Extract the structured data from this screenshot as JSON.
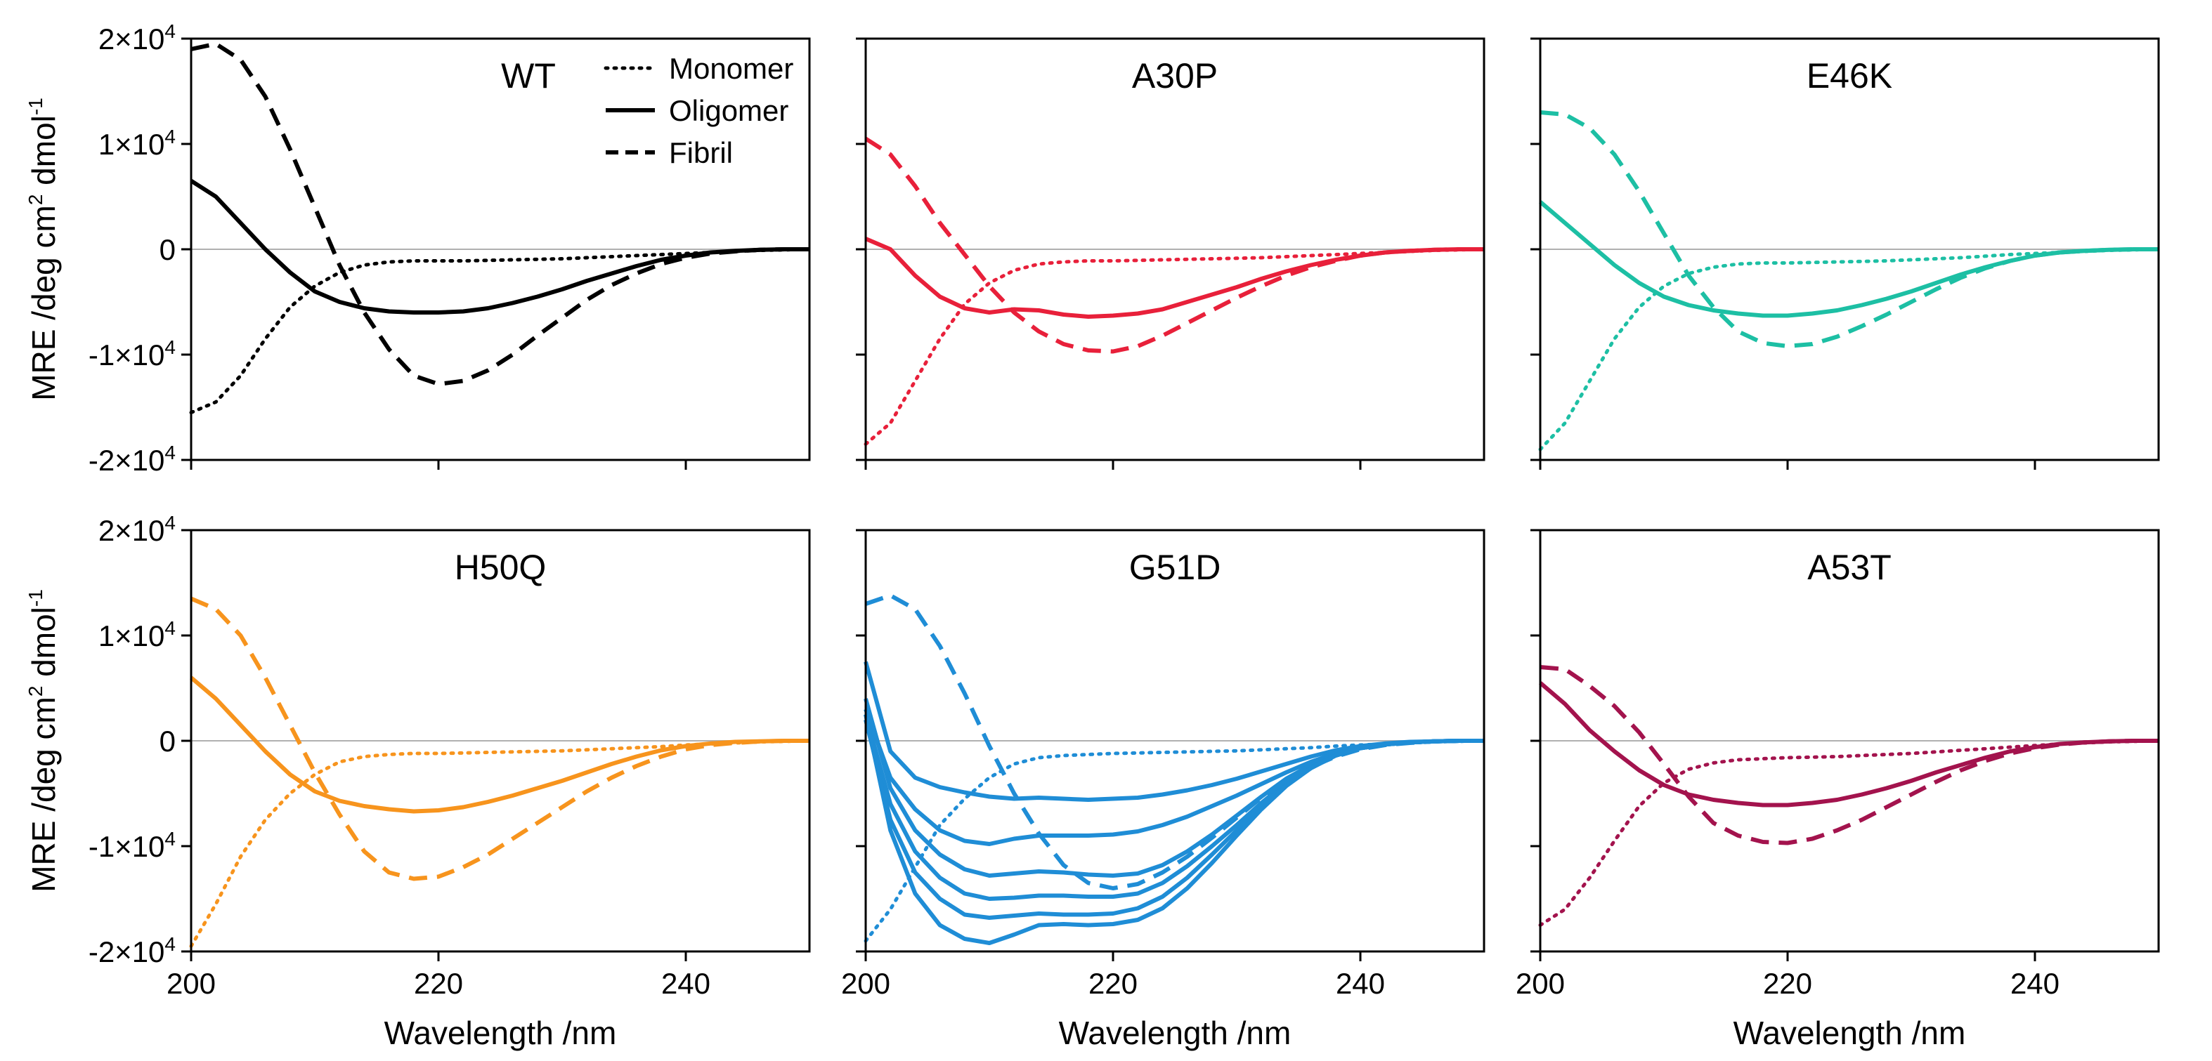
{
  "chart_data": {
    "type": "line",
    "figure": "Circular dichroism spectra of alpha-synuclein variants",
    "xlabel": "Wavelength /nm",
    "ylabel": "MRE /deg cm2 dmol-1",
    "ylabel_parts": {
      "base": "MRE /deg cm",
      "sup1": "2",
      "mid": " dmol",
      "sup2": "-1"
    },
    "xlim": [
      200,
      250
    ],
    "ylim": [
      -20000,
      20000
    ],
    "x_ticks": [
      200,
      220,
      240
    ],
    "x_tick_labels": [
      "200",
      "220",
      "240"
    ],
    "y_ticks": [
      20000,
      10000,
      0,
      -10000,
      -20000
    ],
    "y_tick_labels": [
      {
        "mant": "2×10",
        "exp": "4"
      },
      {
        "mant": "1×10",
        "exp": "4"
      },
      {
        "mant": "0",
        "exp": ""
      },
      {
        "mant": "-1×10",
        "exp": "4"
      },
      {
        "mant": "-2×10",
        "exp": "4"
      }
    ],
    "legend": {
      "position": "top-left panel, top-right",
      "entries": [
        {
          "label": "Monomer",
          "style": "dotted"
        },
        {
          "label": "Oligomer",
          "style": "solid"
        },
        {
          "label": "Fibril",
          "style": "dashed"
        }
      ]
    },
    "x": [
      200,
      202,
      204,
      206,
      208,
      210,
      212,
      214,
      216,
      218,
      220,
      222,
      224,
      226,
      228,
      230,
      232,
      234,
      236,
      238,
      240,
      242,
      244,
      246,
      248,
      250
    ],
    "panels": [
      {
        "title": "WT",
        "color": "#000000",
        "series": [
          {
            "name": "Monomer",
            "style": "dotted",
            "values": [
              -15500,
              -14500,
              -12000,
              -8500,
              -5500,
              -3500,
              -2200,
              -1500,
              -1200,
              -1100,
              -1100,
              -1100,
              -1050,
              -1000,
              -950,
              -900,
              -800,
              -700,
              -600,
              -500,
              -400,
              -300,
              -200,
              -100,
              -50,
              0
            ]
          },
          {
            "name": "Oligomer",
            "style": "solid",
            "values": [
              6500,
              5000,
              2500,
              0,
              -2200,
              -4000,
              -5000,
              -5600,
              -5900,
              -6000,
              -6000,
              -5900,
              -5600,
              -5100,
              -4500,
              -3800,
              -3000,
              -2300,
              -1600,
              -1000,
              -600,
              -300,
              -150,
              -50,
              0,
              0
            ]
          },
          {
            "name": "Fibril",
            "style": "dashed",
            "values": [
              19000,
              19500,
              18000,
              14500,
              9500,
              4000,
              -1500,
              -6000,
              -9500,
              -12000,
              -12800,
              -12500,
              -11500,
              -10000,
              -8200,
              -6500,
              -4800,
              -3400,
              -2300,
              -1400,
              -800,
              -400,
              -200,
              -50,
              0,
              0
            ]
          }
        ]
      },
      {
        "title": "A30P",
        "color": "#e8203a",
        "series": [
          {
            "name": "Monomer",
            "style": "dotted",
            "values": [
              -18500,
              -16500,
              -12500,
              -8500,
              -5200,
              -3200,
              -2000,
              -1400,
              -1200,
              -1100,
              -1100,
              -1050,
              -1000,
              -950,
              -900,
              -850,
              -800,
              -700,
              -600,
              -500,
              -400,
              -300,
              -200,
              -100,
              -50,
              0
            ]
          },
          {
            "name": "Oligomer",
            "style": "solid",
            "values": [
              1000,
              0,
              -2500,
              -4500,
              -5600,
              -6000,
              -5700,
              -5800,
              -6200,
              -6400,
              -6300,
              -6100,
              -5700,
              -5000,
              -4300,
              -3600,
              -2800,
              -2100,
              -1500,
              -1000,
              -600,
              -300,
              -150,
              -50,
              0,
              0
            ]
          },
          {
            "name": "Fibril",
            "style": "dashed",
            "values": [
              10500,
              9000,
              6000,
              2500,
              -500,
              -3500,
              -6000,
              -7800,
              -9000,
              -9600,
              -9700,
              -9200,
              -8200,
              -7000,
              -5800,
              -4600,
              -3500,
              -2500,
              -1700,
              -1100,
              -600,
              -300,
              -150,
              -50,
              0,
              0
            ]
          }
        ]
      },
      {
        "title": "E46K",
        "color": "#1dbfa4",
        "series": [
          {
            "name": "Monomer",
            "style": "dotted",
            "values": [
              -19000,
              -16500,
              -12500,
              -8500,
              -5500,
              -3500,
              -2300,
              -1700,
              -1400,
              -1300,
              -1300,
              -1250,
              -1200,
              -1150,
              -1100,
              -1000,
              -900,
              -800,
              -650,
              -500,
              -400,
              -300,
              -200,
              -100,
              -50,
              0
            ]
          },
          {
            "name": "Oligomer",
            "style": "solid",
            "values": [
              4500,
              2500,
              500,
              -1500,
              -3200,
              -4500,
              -5300,
              -5800,
              -6100,
              -6300,
              -6300,
              -6100,
              -5800,
              -5300,
              -4700,
              -4000,
              -3200,
              -2400,
              -1700,
              -1100,
              -600,
              -300,
              -150,
              -50,
              0,
              0
            ]
          },
          {
            "name": "Fibril",
            "style": "dashed",
            "values": [
              13000,
              12800,
              11500,
              9000,
              5500,
              1500,
              -2500,
              -5500,
              -7800,
              -8900,
              -9200,
              -9000,
              -8300,
              -7300,
              -6200,
              -5000,
              -3800,
              -2700,
              -1800,
              -1100,
              -600,
              -300,
              -150,
              -50,
              0,
              0
            ]
          }
        ]
      },
      {
        "title": "H50Q",
        "color": "#f7941d",
        "series": [
          {
            "name": "Monomer",
            "style": "dotted",
            "values": [
              -19500,
              -15500,
              -11000,
              -7500,
              -5000,
              -3200,
              -2000,
              -1500,
              -1300,
              -1200,
              -1200,
              -1150,
              -1100,
              -1050,
              -1000,
              -950,
              -850,
              -750,
              -650,
              -550,
              -400,
              -300,
              -200,
              -100,
              -50,
              0
            ]
          },
          {
            "name": "Oligomer",
            "style": "solid",
            "values": [
              6000,
              4000,
              1500,
              -1000,
              -3200,
              -4800,
              -5700,
              -6200,
              -6500,
              -6700,
              -6600,
              -6300,
              -5800,
              -5200,
              -4500,
              -3800,
              -3000,
              -2200,
              -1500,
              -900,
              -500,
              -250,
              -100,
              -50,
              0,
              0
            ]
          },
          {
            "name": "Fibril",
            "style": "dashed",
            "values": [
              13500,
              12500,
              10000,
              6000,
              1500,
              -3000,
              -7000,
              -10500,
              -12500,
              -13100,
              -12900,
              -12000,
              -10800,
              -9300,
              -7800,
              -6300,
              -4800,
              -3500,
              -2400,
              -1500,
              -800,
              -400,
              -200,
              -50,
              0,
              0
            ]
          }
        ]
      },
      {
        "title": "G51D",
        "color": "#1f8dd6",
        "series": [
          {
            "name": "Monomer",
            "style": "dotted",
            "values": [
              -19000,
              -16000,
              -12000,
              -8000,
              -5500,
              -3500,
              -2200,
              -1600,
              -1400,
              -1300,
              -1200,
              -1150,
              -1100,
              -1050,
              -1000,
              -950,
              -850,
              -750,
              -650,
              -500,
              -400,
              -300,
              -200,
              -100,
              -50,
              0
            ]
          },
          {
            "name": "Oligomer 1",
            "style": "solid",
            "values": [
              7500,
              -1000,
              -3500,
              -4400,
              -4900,
              -5300,
              -5500,
              -5400,
              -5500,
              -5600,
              -5500,
              -5400,
              -5100,
              -4700,
              -4200,
              -3600,
              -2900,
              -2200,
              -1500,
              -900,
              -500,
              -250,
              -100,
              -50,
              0,
              0
            ]
          },
          {
            "name": "Oligomer 2",
            "style": "solid",
            "values": [
              3000,
              -3500,
              -6500,
              -8500,
              -9500,
              -9800,
              -9300,
              -9000,
              -9000,
              -9000,
              -8900,
              -8600,
              -8000,
              -7200,
              -6200,
              -5200,
              -4100,
              -3000,
              -2000,
              -1200,
              -600,
              -300,
              -150,
              -50,
              0,
              0
            ]
          },
          {
            "name": "Oligomer 3",
            "style": "solid",
            "values": [
              4000,
              -4500,
              -8500,
              -10800,
              -12200,
              -12800,
              -12600,
              -12400,
              -12500,
              -12700,
              -12800,
              -12600,
              -11800,
              -10500,
              -8900,
              -7100,
              -5300,
              -3600,
              -2300,
              -1300,
              -700,
              -350,
              -150,
              -50,
              0,
              0
            ]
          },
          {
            "name": "Oligomer 4",
            "style": "solid",
            "values": [
              2500,
              -6000,
              -10500,
              -13000,
              -14500,
              -15000,
              -14900,
              -14700,
              -14700,
              -14800,
              -14800,
              -14500,
              -13500,
              -11900,
              -10000,
              -8000,
              -5900,
              -4000,
              -2500,
              -1400,
              -700,
              -350,
              -150,
              -50,
              0,
              0
            ]
          },
          {
            "name": "Oligomer 5",
            "style": "solid",
            "values": [
              2000,
              -7500,
              -12500,
              -15000,
              -16500,
              -16800,
              -16600,
              -16400,
              -16500,
              -16500,
              -16400,
              -15900,
              -14800,
              -13000,
              -10800,
              -8500,
              -6200,
              -4200,
              -2600,
              -1400,
              -700,
              -350,
              -150,
              -50,
              0,
              0
            ]
          },
          {
            "name": "Oligomer 6",
            "style": "solid",
            "values": [
              2500,
              -8500,
              -14500,
              -17500,
              -18800,
              -19200,
              -18400,
              -17500,
              -17400,
              -17500,
              -17400,
              -17000,
              -15900,
              -14000,
              -11600,
              -9000,
              -6500,
              -4300,
              -2600,
              -1400,
              -700,
              -350,
              -150,
              -50,
              0,
              0
            ]
          },
          {
            "name": "Fibril",
            "style": "dashed",
            "values": [
              13000,
              13800,
              12500,
              9000,
              4500,
              -500,
              -5000,
              -8800,
              -11800,
              -13500,
              -14000,
              -13600,
              -12500,
              -11000,
              -9200,
              -7300,
              -5400,
              -3800,
              -2500,
              -1500,
              -800,
              -400,
              -200,
              -50,
              0,
              0
            ]
          }
        ]
      },
      {
        "title": "A53T",
        "color": "#a3134d",
        "series": [
          {
            "name": "Monomer",
            "style": "dotted",
            "values": [
              -17500,
              -16000,
              -13000,
              -9500,
              -6200,
              -4000,
              -2700,
              -2100,
              -1800,
              -1700,
              -1600,
              -1550,
              -1500,
              -1400,
              -1300,
              -1200,
              -1050,
              -900,
              -750,
              -600,
              -450,
              -300,
              -200,
              -100,
              -50,
              0
            ]
          },
          {
            "name": "Oligomer",
            "style": "solid",
            "values": [
              5500,
              3500,
              1000,
              -1000,
              -2800,
              -4200,
              -5100,
              -5600,
              -5900,
              -6100,
              -6100,
              -5900,
              -5600,
              -5100,
              -4500,
              -3800,
              -3000,
              -2300,
              -1600,
              -1000,
              -600,
              -300,
              -150,
              -50,
              0,
              0
            ]
          },
          {
            "name": "Fibril",
            "style": "dashed",
            "values": [
              7000,
              6800,
              5200,
              3300,
              800,
              -2200,
              -5300,
              -7800,
              -9000,
              -9600,
              -9700,
              -9300,
              -8500,
              -7500,
              -6300,
              -5100,
              -3900,
              -2800,
              -1900,
              -1200,
              -700,
              -350,
              -150,
              -50,
              0,
              0
            ]
          }
        ]
      }
    ]
  }
}
